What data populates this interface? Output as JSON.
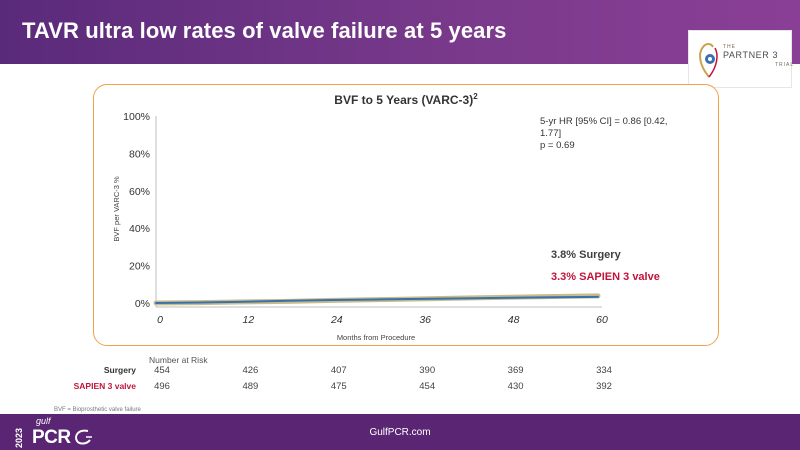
{
  "slide": {
    "title": "TAVR ultra low rates of valve failure at 5 years"
  },
  "logo": {
    "the": "THE",
    "name": "PARTNER 3",
    "trial": "TRIAL"
  },
  "chart_data": {
    "type": "line",
    "title": "BVF to 5 Years (VARC-3)",
    "title_superscript": "2",
    "xlabel": "Months from Procedure",
    "ylabel": "BVF per VARC-3 %",
    "x_ticks": [
      0,
      12,
      24,
      36,
      48,
      60
    ],
    "y_ticks": [
      "0%",
      "20%",
      "40%",
      "60%",
      "80%",
      "100%"
    ],
    "xlim": [
      0,
      60
    ],
    "ylim": [
      0,
      100
    ],
    "grid": false,
    "series": [
      {
        "name": "Surgery",
        "color": "#c8bd8a",
        "x": [
          0,
          6,
          12,
          18,
          24,
          30,
          36,
          42,
          48,
          54,
          60
        ],
        "y": [
          0,
          0.2,
          0.6,
          0.9,
          1.4,
          1.8,
          2.2,
          2.7,
          3.1,
          3.5,
          3.8
        ]
      },
      {
        "name": "SAPIEN 3 valve",
        "color": "#3a6fb0",
        "x": [
          0,
          6,
          12,
          18,
          24,
          30,
          36,
          42,
          48,
          54,
          60
        ],
        "y": [
          0,
          0.3,
          0.7,
          1.2,
          1.6,
          1.9,
          2.2,
          2.5,
          2.8,
          3.1,
          3.3
        ]
      }
    ],
    "annotation": {
      "line1": "5-yr HR [95% CI] = 0.86 [0.42,",
      "line2": "1.77]",
      "line3": "p = 0.69"
    },
    "end_labels": {
      "surgery": "3.8% Surgery",
      "sapien": "3.3% SAPIEN 3 valve"
    },
    "end_label_colors": {
      "surgery": "#404040",
      "sapien": "#c0143c"
    }
  },
  "risk_table": {
    "header": "Number at Risk",
    "rows": [
      {
        "label": "Surgery",
        "color": "#333333",
        "values": [
          "454",
          "426",
          "407",
          "390",
          "369",
          "334"
        ]
      },
      {
        "label": "SAPIEN 3 valve",
        "color": "#c0143c",
        "values": [
          "496",
          "489",
          "475",
          "454",
          "430",
          "392"
        ]
      }
    ]
  },
  "footnote": "BVF = Bioprosthetic valve failure",
  "footer": {
    "url": "GulfPCR.com",
    "year": "2023",
    "gulf": "gulf",
    "pcr": "PCR"
  }
}
